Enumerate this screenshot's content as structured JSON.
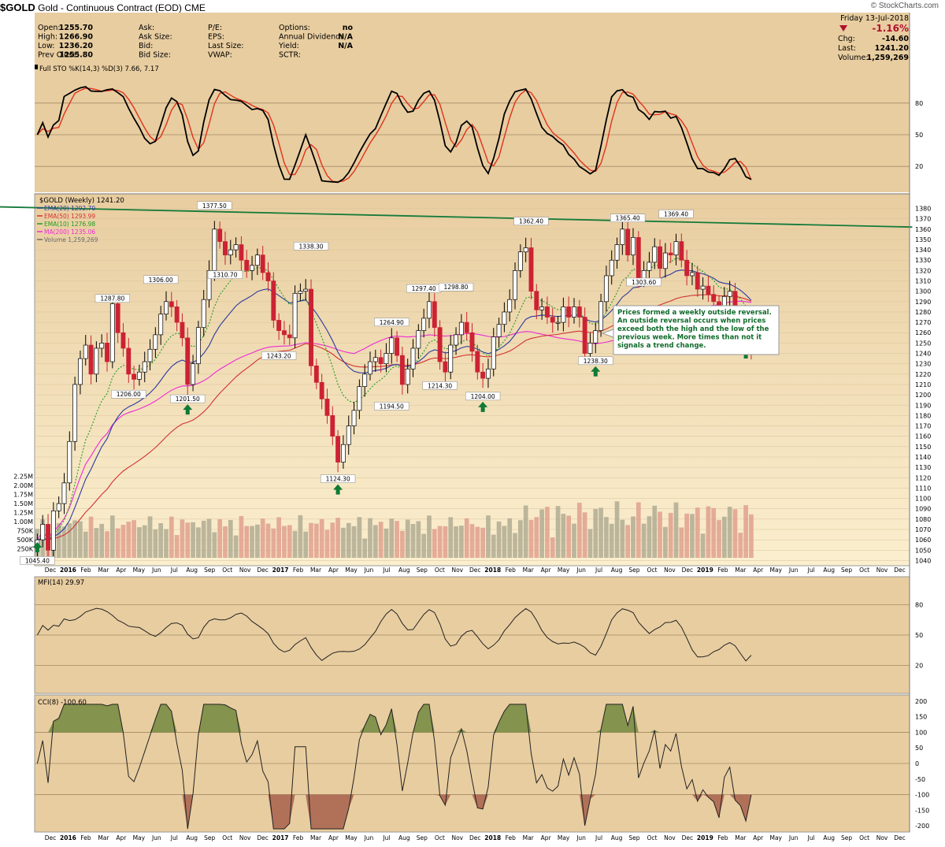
{
  "header": {
    "symbol": "$GOLD",
    "name": "Gold - Continuous Contract (EOD)",
    "exchange": "CME",
    "brand": "© StockCharts.com"
  },
  "quote": {
    "open_label": "Open:",
    "open": "1255.70",
    "high_label": "High:",
    "high": "1266.90",
    "low_label": "Low:",
    "low": "1236.20",
    "prev_label": "Prev Close:",
    "prev": "1255.80",
    "ask_label": "Ask:",
    "ask": "",
    "asksize_label": "Ask Size:",
    "asksize": "",
    "bid_label": "Bid:",
    "bid": "",
    "bidsize_label": "Bid Size:",
    "bidsize": "",
    "pe_label": "P/E:",
    "pe": "",
    "eps_label": "EPS:",
    "eps": "",
    "lastsize_label": "Last Size:",
    "lastsize": "",
    "vwap_label": "VWAP:",
    "vwap": "",
    "options_label": "Options:",
    "options": "no",
    "div_label": "Annual Dividend:",
    "div": "N/A",
    "yield_label": "Yield:",
    "yield": "N/A",
    "sctr_label": "SCTR:",
    "sctr": "",
    "date": "Friday  13-Jul-2018",
    "pct": "-1.16%",
    "chg_label": "Chg:",
    "chg": "-14.60",
    "last_label": "Last:",
    "last": "1241.20",
    "vol_label": "Volume:",
    "vol": "1,259,269"
  },
  "colors": {
    "panel_bg": "#e8cda0",
    "chart_bg": "#fbefcf",
    "price_up": "#ffffff",
    "price_down": "#cc2233",
    "ema20": "#2b3aa0",
    "ema50": "#d23232",
    "ema10": "#239b23",
    "ma200": "#ee2bd6",
    "trendline": "#157a3a",
    "sto_k": "#000000",
    "sto_d": "#e0321e",
    "arrow": "#0f7a35",
    "note_text": "#0f6a2a"
  },
  "sto_panel": {
    "label": "Full STO %K(14,3) %D(3) 7.66, 7.17",
    "ticks": [
      "80",
      "50",
      "20"
    ]
  },
  "price_panel": {
    "label": "$GOLD (Weekly) 1241.20",
    "legend": [
      "EMA(20) 1292.70",
      "EMA(50) 1293.99",
      "EMA(10) 1276.98",
      "MA(200) 1235.06",
      "Volume 1,259,269"
    ],
    "vol_ticks": [
      "2.25M",
      "2.00M",
      "1.75M",
      "1.50M",
      "1.25M",
      "1.00M",
      "750K",
      "500K",
      "250K"
    ],
    "annotation": "Prices formed a weekly outside reversal. An outside reversal occurs when prices exceed both the high and the low of the previous week. More times than not it signals a trend change."
  },
  "mfi_panel": {
    "label": "MFI(14) 29.97",
    "ticks": [
      "80",
      "50",
      "20"
    ]
  },
  "cci_panel": {
    "label": "CCI(8) -100.60",
    "ticks": [
      "200",
      "150",
      "100",
      "50",
      "0",
      "-50",
      "-100",
      "-150",
      "-200"
    ]
  },
  "chart_data": {
    "type": "candlestick",
    "period": "weekly",
    "x_axis_labels": [
      "Dec",
      "2016",
      "Feb",
      "Mar",
      "Apr",
      "May",
      "Jun",
      "Jul",
      "Aug",
      "Sep",
      "Oct",
      "Nov",
      "Dec",
      "2017",
      "Feb",
      "Mar",
      "Apr",
      "May",
      "Jun",
      "Jul",
      "Aug",
      "Sep",
      "Oct",
      "Nov",
      "Dec",
      "2018",
      "Feb",
      "Mar",
      "Apr",
      "May",
      "Jun",
      "Jul",
      "Aug",
      "Sep",
      "Oct",
      "Nov",
      "Dec",
      "2019",
      "Feb",
      "Mar",
      "Apr",
      "May",
      "Jun",
      "Jul",
      "Aug",
      "Sep",
      "Oct",
      "Nov",
      "Dec"
    ],
    "y_range": [
      1035,
      1388
    ],
    "y_ticks": [
      1040,
      1050,
      1060,
      1070,
      1080,
      1090,
      1100,
      1110,
      1120,
      1130,
      1140,
      1150,
      1160,
      1170,
      1180,
      1190,
      1200,
      1210,
      1220,
      1230,
      1240,
      1250,
      1260,
      1270,
      1280,
      1290,
      1300,
      1310,
      1320,
      1330,
      1340,
      1350,
      1360,
      1370,
      1380
    ],
    "price_labels": [
      {
        "text": "1045.40",
        "week": 0,
        "value": 1045.4
      },
      {
        "text": "1287.80",
        "week": 14,
        "value": 1287.8
      },
      {
        "text": "1206.00",
        "week": 17,
        "value": 1206.0
      },
      {
        "text": "1306.00",
        "week": 23,
        "value": 1306.0
      },
      {
        "text": "1201.50",
        "week": 28,
        "value": 1201.5
      },
      {
        "text": "1310.70",
        "week": 35,
        "value": 1310.7
      },
      {
        "text": "1377.50",
        "week": 33,
        "value": 1377.5
      },
      {
        "text": "1243.20",
        "week": 45,
        "value": 1243.2
      },
      {
        "text": "1338.30",
        "week": 51,
        "value": 1338.3
      },
      {
        "text": "1124.30",
        "week": 56,
        "value": 1124.3
      },
      {
        "text": "1264.90",
        "week": 66,
        "value": 1264.9
      },
      {
        "text": "1194.50",
        "week": 66,
        "value": 1194.5
      },
      {
        "text": "1297.40",
        "week": 72,
        "value": 1297.4
      },
      {
        "text": "1298.80",
        "week": 78,
        "value": 1298.8
      },
      {
        "text": "1214.30",
        "week": 75,
        "value": 1214.3
      },
      {
        "text": "1204.00",
        "week": 83,
        "value": 1204.0
      },
      {
        "text": "1362.40",
        "week": 92,
        "value": 1362.4
      },
      {
        "text": "1238.30",
        "week": 104,
        "value": 1238.3
      },
      {
        "text": "1365.40",
        "week": 110,
        "value": 1365.4
      },
      {
        "text": "1303.60",
        "week": 113,
        "value": 1303.6
      },
      {
        "text": "1369.40",
        "week": 119,
        "value": 1369.4
      }
    ],
    "trendline": {
      "from": {
        "week": -8,
        "value": 1382
      },
      "to": {
        "week": 163,
        "value": 1362
      }
    },
    "arrow_weeks": [
      0,
      28,
      56,
      83,
      104,
      132
    ],
    "close_series_weekly": [
      1060,
      1075,
      1050,
      1088,
      1095,
      1115,
      1155,
      1210,
      1235,
      1248,
      1220,
      1245,
      1250,
      1232,
      1288,
      1260,
      1245,
      1220,
      1215,
      1222,
      1232,
      1244,
      1258,
      1278,
      1290,
      1285,
      1270,
      1255,
      1210,
      1230,
      1265,
      1292,
      1320,
      1360,
      1348,
      1335,
      1340,
      1345,
      1330,
      1320,
      1325,
      1335,
      1318,
      1310,
      1272,
      1262,
      1258,
      1255,
      1298,
      1300,
      1302,
      1228,
      1212,
      1196,
      1180,
      1160,
      1135,
      1152,
      1170,
      1185,
      1208,
      1220,
      1232,
      1236,
      1230,
      1240,
      1255,
      1238,
      1210,
      1225,
      1245,
      1262,
      1274,
      1290,
      1265,
      1232,
      1222,
      1248,
      1258,
      1270,
      1260,
      1242,
      1222,
      1216,
      1225,
      1256,
      1268,
      1280,
      1292,
      1320,
      1338,
      1342,
      1300,
      1282,
      1285,
      1275,
      1270,
      1270,
      1285,
      1275,
      1285,
      1275,
      1240,
      1250,
      1262,
      1290,
      1315,
      1330,
      1345,
      1360,
      1335,
      1352,
      1312,
      1320,
      1328,
      1343,
      1322,
      1337,
      1335,
      1348,
      1330,
      1315,
      1318,
      1302,
      1305,
      1297,
      1290,
      1275,
      1295,
      1300,
      1278,
      1270,
      1255,
      1241
    ],
    "series": [
      {
        "name": "EMA(20)",
        "last": 1292.7
      },
      {
        "name": "EMA(50)",
        "last": 1293.99
      },
      {
        "name": "EMA(10)",
        "last": 1276.98
      },
      {
        "name": "MA(200)",
        "last": 1235.06
      },
      {
        "name": "Volume",
        "last": 1259269
      }
    ],
    "volume_ylim": [
      0,
      2500000
    ],
    "indicators": {
      "full_sto": {
        "k_last": 7.66,
        "d_last": 7.17,
        "ylim": [
          0,
          100
        ],
        "ref_lines": [
          80,
          50,
          20
        ]
      },
      "mfi": {
        "last": 29.97,
        "ylim": [
          0,
          100
        ],
        "ref_lines": [
          80,
          50,
          20
        ]
      },
      "cci": {
        "last": -100.6,
        "ylim": [
          -220,
          220
        ],
        "ref_lines": [
          100,
          0,
          -100
        ]
      }
    },
    "legend_placement": "top-left",
    "grid": true
  }
}
